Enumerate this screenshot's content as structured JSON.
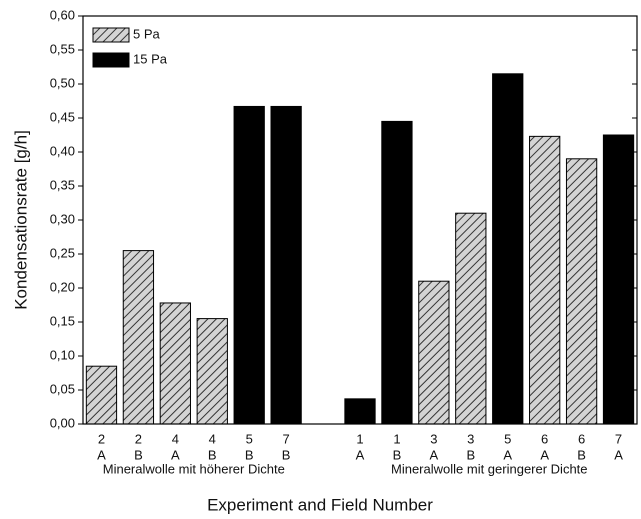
{
  "chart_data": {
    "type": "bar",
    "x_label": "Experiment and Field Number",
    "y_label": "Kondensationsrate [g/h]",
    "categories": [
      [
        "2",
        "A"
      ],
      [
        "2",
        "B"
      ],
      [
        "4",
        "A"
      ],
      [
        "4",
        "B"
      ],
      [
        "5",
        "B"
      ],
      [
        "7",
        "B"
      ],
      null,
      [
        "1",
        "A"
      ],
      [
        "1",
        "B"
      ],
      [
        "3",
        "A"
      ],
      [
        "3",
        "B"
      ],
      [
        "5",
        "A"
      ],
      [
        "6",
        "A"
      ],
      [
        "6",
        "B"
      ],
      [
        "7",
        "A"
      ]
    ],
    "group_labels": [
      "Mineralwolle mit höherer Dichte",
      "Mineralwolle mit geringerer Dichte"
    ],
    "series": [
      {
        "name": "5 Pa",
        "color": "#d4d4d4",
        "hatch": true,
        "values": [
          0.085,
          0.255,
          0.178,
          0.155,
          null,
          null,
          null,
          null,
          null,
          0.21,
          0.31,
          null,
          0.423,
          0.39,
          null
        ]
      },
      {
        "name": "15 Pa",
        "color": "#000000",
        "hatch": false,
        "values": [
          null,
          null,
          null,
          null,
          0.467,
          0.467,
          null,
          0.037,
          0.445,
          null,
          null,
          0.515,
          null,
          null,
          0.425
        ]
      }
    ],
    "ylim": [
      0,
      0.6
    ],
    "yticks": [
      {
        "value": 0,
        "label": "0,00"
      },
      {
        "value": 0.05,
        "label": "0,05"
      },
      {
        "value": 0.1,
        "label": "0,10"
      },
      {
        "value": 0.15,
        "label": "0,15"
      },
      {
        "value": 0.2,
        "label": "0,20"
      },
      {
        "value": 0.25,
        "label": "0,25"
      },
      {
        "value": 0.3,
        "label": "0,30"
      },
      {
        "value": 0.35,
        "label": "0,35"
      },
      {
        "value": 0.4,
        "label": "0,40"
      },
      {
        "value": 0.45,
        "label": "0,45"
      },
      {
        "value": 0.5,
        "label": "0,50"
      },
      {
        "value": 0.55,
        "label": "0,55"
      },
      {
        "value": 0.6,
        "label": "0,60"
      }
    ],
    "legend": "upper left",
    "grid": false
  }
}
